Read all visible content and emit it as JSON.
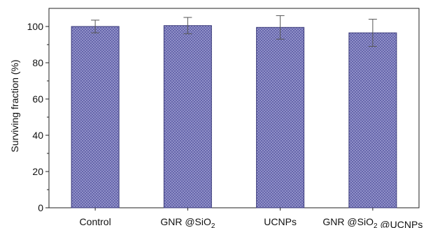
{
  "chart_data": {
    "type": "bar",
    "categories": [
      "Control",
      "GNR@SiO2",
      "UCNPs",
      "GNR@SiO2@UCNPs"
    ],
    "category_labels": [
      {
        "parts": [
          {
            "text": "Control",
            "sub": false
          }
        ]
      },
      {
        "parts": [
          {
            "text": "GNR @SiO",
            "sub": false
          },
          {
            "text": "2",
            "sub": true
          }
        ]
      },
      {
        "parts": [
          {
            "text": "UCNPs",
            "sub": false
          }
        ]
      },
      {
        "parts": [
          {
            "text": "GNR @SiO",
            "sub": false
          },
          {
            "text": "2",
            "sub": true
          },
          {
            "text": " @UCNPs",
            "sub": false
          }
        ]
      }
    ],
    "values": [
      100,
      100.5,
      99.5,
      96.5
    ],
    "errors": [
      3.5,
      4.5,
      6.5,
      7.5
    ],
    "ylabel": "Surviving fraction (%)",
    "xlabel": "",
    "ylim": [
      0,
      110
    ],
    "yticks": [
      0,
      20,
      40,
      60,
      80,
      100
    ],
    "grid": false,
    "bar_fill_color": "#9b9bd0",
    "bar_hatch_color": "#5c5ca4",
    "bar_edge_color": "#3a3a7a"
  }
}
